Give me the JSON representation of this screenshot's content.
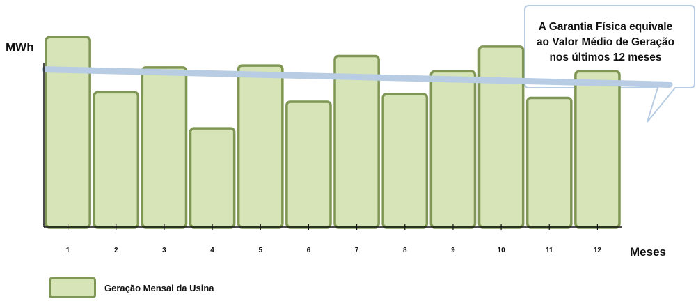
{
  "chart_data": {
    "type": "bar",
    "categories": [
      "1",
      "2",
      "3",
      "4",
      "5",
      "6",
      "7",
      "8",
      "9",
      "10",
      "11",
      "12"
    ],
    "series": [
      {
        "name": "Geração Mensal da Usina",
        "values": [
          100,
          71,
          84,
          52,
          85,
          66,
          90,
          70,
          82,
          95,
          68,
          82
        ]
      }
    ],
    "trend_line": {
      "start": 83,
      "end": 75
    },
    "xlabel": "Meses",
    "ylabel": "MWh",
    "ylim": [
      0,
      110
    ],
    "grid": false,
    "legend_position": "bottom-left",
    "annotation": "A Garantia Física equivale ao Valor Médio de Geração nos últimos 12 meses",
    "annotation_lines": [
      "A Garantia Física equivale",
      "ao Valor Médio de Geração",
      "nos últimos 12 meses"
    ],
    "colors": {
      "bar_fill": "#d6e4b7",
      "bar_stroke": "#7f9654",
      "trend_line": "#b8cce4",
      "callout_border": "#b8cce4"
    }
  }
}
